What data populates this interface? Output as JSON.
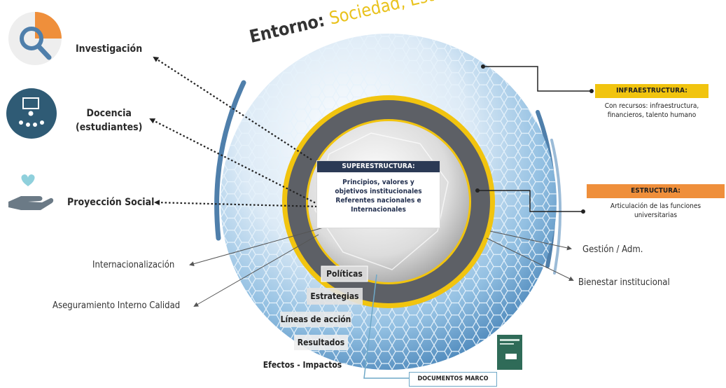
{
  "title": {
    "prefix": "Entorno: ",
    "accent": "Sociedad, Estado, Empresa"
  },
  "functions": {
    "research": "Investigación",
    "teaching_line1": "Docencia",
    "teaching_line2": "(estudiantes)",
    "outreach": "Proyección Social"
  },
  "infrastructure": {
    "heading": "INFRAESTRUCTURA:",
    "line1": "Con recursos: infraestructura,",
    "line2": "financieros, talento humano"
  },
  "structure": {
    "heading": "ESTRUCTURA:",
    "line1": "Articulación de las funciones",
    "line2": "universitarias"
  },
  "superstructure": {
    "heading": "SUPERESTRUCTURA:",
    "line1": "Principios, valores y",
    "line2": "objetivos institucionales",
    "line3": "Referentes nacionales e",
    "line4": "Internacionales"
  },
  "side_labels": {
    "internationalization": "Internacionalización",
    "quality": "Aseguramiento Interno Calidad",
    "management": "Gestión / Adm.",
    "welfare": "Bienestar institucional"
  },
  "steps": {
    "policies": "Políticas",
    "strategies": "Estrategias",
    "action_lines": "Líneas de acción",
    "results": "Resultados",
    "effects": "Efectos - Impactos"
  },
  "documents": "DOCUMENTOS MARCO",
  "colors": {
    "navy": "#2b3a55",
    "gold": "#f1c40f",
    "orange": "#ef8f3b",
    "steel_blue": "#5b87aa",
    "ring_gray": "#5d6066"
  }
}
